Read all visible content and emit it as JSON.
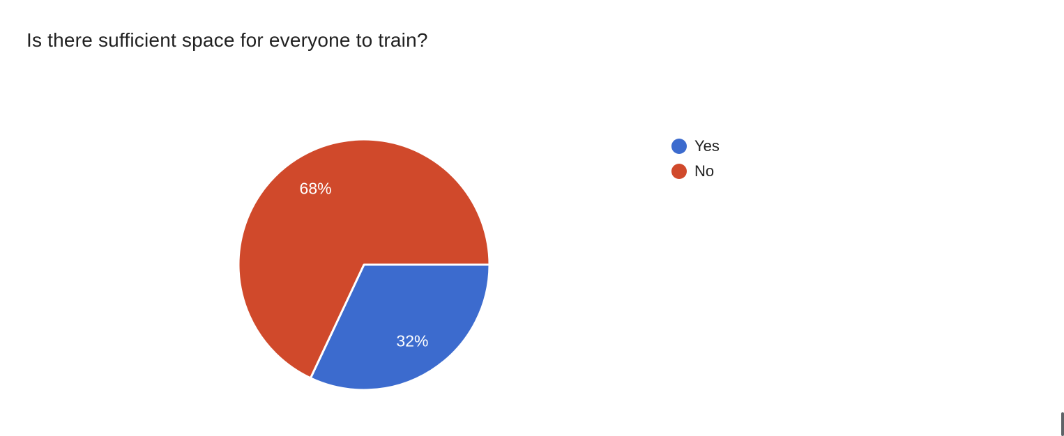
{
  "chart_data": {
    "type": "pie",
    "title": "Is there sufficient space for everyone to train?",
    "categories": [
      "Yes",
      "No"
    ],
    "values": [
      32,
      68
    ],
    "labels": [
      "32%",
      "68%"
    ],
    "colors": [
      "#3c6bce",
      "#d0492b"
    ],
    "slice_label_color": "#ffffff",
    "legend_position": "right",
    "start_angle_deg": 0,
    "direction": "clockwise",
    "background": "#ffffff"
  }
}
